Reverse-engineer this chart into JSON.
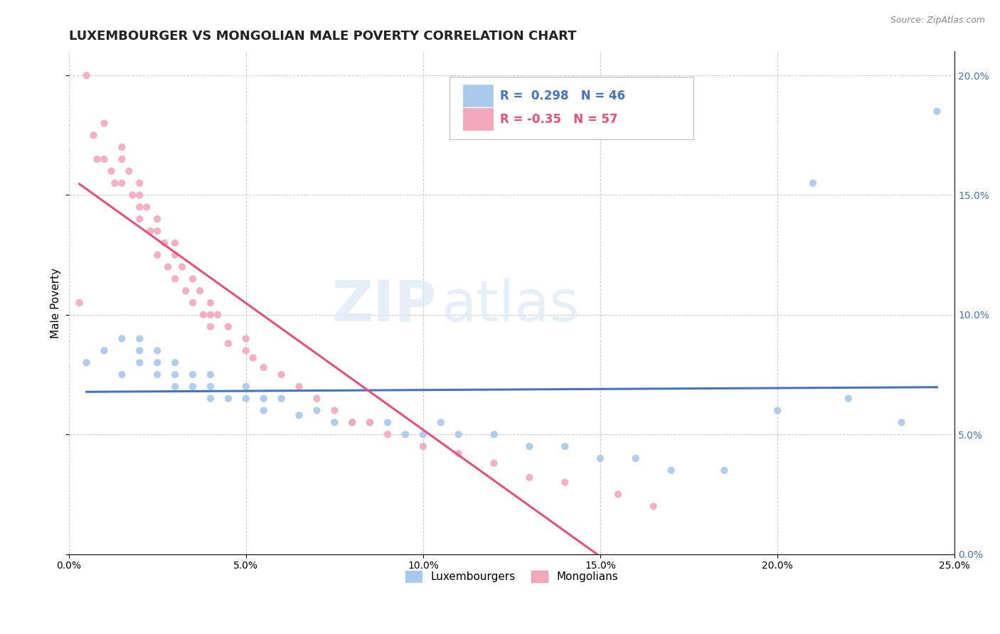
{
  "title": "LUXEMBOURGER VS MONGOLIAN MALE POVERTY CORRELATION CHART",
  "source": "Source: ZipAtlas.com",
  "ylabel": "Male Poverty",
  "xlim": [
    0.0,
    0.25
  ],
  "ylim": [
    0.0,
    0.21
  ],
  "xticks": [
    0.0,
    0.05,
    0.1,
    0.15,
    0.2,
    0.25
  ],
  "xticklabels": [
    "0.0%",
    "5.0%",
    "10.0%",
    "15.0%",
    "20.0%",
    "25.0%"
  ],
  "yticks_right": [
    0.0,
    0.05,
    0.1,
    0.15,
    0.2
  ],
  "yticklabels_right": [
    "0.0%",
    "5.0%",
    "10.0%",
    "15.0%",
    "20.0%"
  ],
  "blue_R": 0.298,
  "blue_N": 46,
  "pink_R": -0.35,
  "pink_N": 57,
  "blue_color": "#A8C8EC",
  "pink_color": "#F4A8BC",
  "blue_line_color": "#4472C4",
  "pink_line_color": "#E8507A",
  "watermark_zip": "ZIP",
  "watermark_atlas": "atlas",
  "title_fontsize": 13,
  "label_fontsize": 11,
  "blue_scatter_x": [
    0.005,
    0.01,
    0.015,
    0.015,
    0.02,
    0.02,
    0.02,
    0.025,
    0.025,
    0.025,
    0.03,
    0.03,
    0.03,
    0.035,
    0.035,
    0.04,
    0.04,
    0.04,
    0.045,
    0.05,
    0.05,
    0.055,
    0.055,
    0.06,
    0.065,
    0.07,
    0.075,
    0.08,
    0.085,
    0.09,
    0.095,
    0.1,
    0.105,
    0.11,
    0.12,
    0.13,
    0.14,
    0.15,
    0.16,
    0.17,
    0.185,
    0.2,
    0.21,
    0.22,
    0.235,
    0.245
  ],
  "blue_scatter_y": [
    0.08,
    0.085,
    0.075,
    0.09,
    0.085,
    0.08,
    0.09,
    0.075,
    0.08,
    0.085,
    0.075,
    0.07,
    0.08,
    0.07,
    0.075,
    0.065,
    0.07,
    0.075,
    0.065,
    0.065,
    0.07,
    0.065,
    0.06,
    0.065,
    0.058,
    0.06,
    0.055,
    0.055,
    0.055,
    0.055,
    0.05,
    0.05,
    0.055,
    0.05,
    0.05,
    0.045,
    0.045,
    0.04,
    0.04,
    0.035,
    0.035,
    0.06,
    0.155,
    0.065,
    0.055,
    0.185
  ],
  "pink_scatter_x": [
    0.003,
    0.005,
    0.007,
    0.008,
    0.01,
    0.01,
    0.012,
    0.013,
    0.015,
    0.015,
    0.015,
    0.017,
    0.018,
    0.02,
    0.02,
    0.02,
    0.02,
    0.022,
    0.023,
    0.025,
    0.025,
    0.025,
    0.027,
    0.028,
    0.03,
    0.03,
    0.03,
    0.032,
    0.033,
    0.035,
    0.035,
    0.037,
    0.038,
    0.04,
    0.04,
    0.04,
    0.042,
    0.045,
    0.045,
    0.05,
    0.05,
    0.052,
    0.055,
    0.06,
    0.065,
    0.07,
    0.075,
    0.08,
    0.085,
    0.09,
    0.1,
    0.11,
    0.12,
    0.13,
    0.14,
    0.155,
    0.165
  ],
  "pink_scatter_y": [
    0.105,
    0.2,
    0.175,
    0.165,
    0.18,
    0.165,
    0.16,
    0.155,
    0.17,
    0.165,
    0.155,
    0.16,
    0.15,
    0.155,
    0.15,
    0.145,
    0.14,
    0.145,
    0.135,
    0.14,
    0.135,
    0.125,
    0.13,
    0.12,
    0.13,
    0.125,
    0.115,
    0.12,
    0.11,
    0.115,
    0.105,
    0.11,
    0.1,
    0.105,
    0.1,
    0.095,
    0.1,
    0.095,
    0.088,
    0.085,
    0.09,
    0.082,
    0.078,
    0.075,
    0.07,
    0.065,
    0.06,
    0.055,
    0.055,
    0.05,
    0.045,
    0.042,
    0.038,
    0.032,
    0.03,
    0.025,
    0.02
  ]
}
